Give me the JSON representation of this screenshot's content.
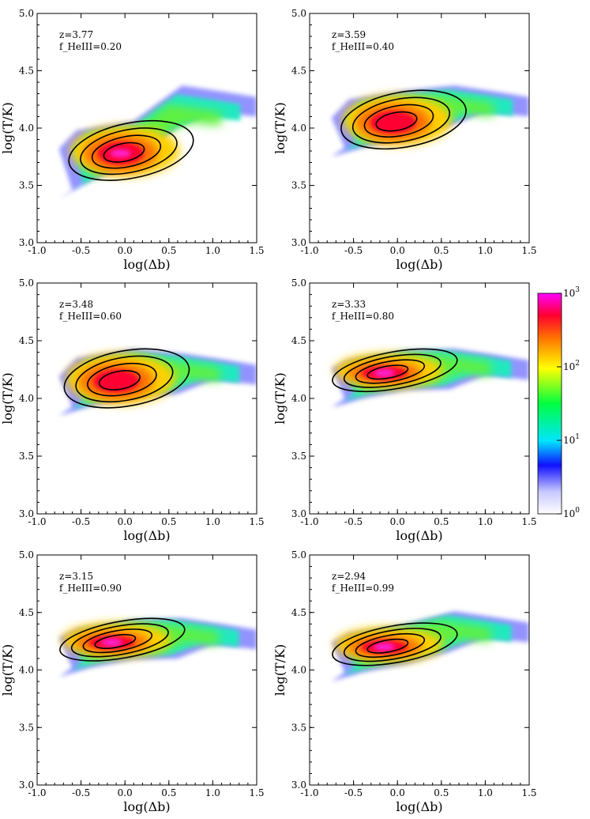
{
  "chart_data": {
    "type": "heatmap",
    "title": "",
    "xlabel": "log(Δb)",
    "ylabel": "log(T/K)",
    "xlim": [
      -1.0,
      1.5
    ],
    "ylim": [
      3.0,
      5.0
    ],
    "xticks": [
      "-1.0",
      "-0.5",
      "0.0",
      "0.5",
      "1.0",
      "1.5"
    ],
    "yticks": [
      "3.0",
      "3.5",
      "4.0",
      "4.5",
      "5.0"
    ],
    "colorbar": {
      "scale": "log",
      "ticks": [
        "10^0",
        "10^1",
        "10^2",
        "10^3"
      ],
      "range": [
        1,
        1000
      ]
    },
    "panels": [
      {
        "z": "z=3.77",
        "f": "f_HeIII=0.20",
        "peak_x": -0.05,
        "peak_y": 3.78,
        "spread": "low-diagonal",
        "tail_y": 4.22
      },
      {
        "z": "z=3.59",
        "f": "f_HeIII=0.40",
        "peak_x": -0.05,
        "peak_y": 4.05,
        "spread": "broad",
        "tail_y": 4.22
      },
      {
        "z": "z=3.48",
        "f": "f_HeIII=0.60",
        "peak_x": -0.1,
        "peak_y": 4.15,
        "spread": "broad",
        "tail_y": 4.24
      },
      {
        "z": "z=3.33",
        "f": "f_HeIII=0.80",
        "peak_x": -0.15,
        "peak_y": 4.22,
        "spread": "tight",
        "tail_y": 4.28
      },
      {
        "z": "z=3.15",
        "f": "f_HeIII=0.90",
        "peak_x": -0.15,
        "peak_y": 4.24,
        "spread": "tight",
        "tail_y": 4.3
      },
      {
        "z": "z=2.94",
        "f": "f_HeIII=0.99",
        "peak_x": -0.15,
        "peak_y": 4.2,
        "spread": "tight",
        "tail_y": 4.36
      }
    ]
  }
}
